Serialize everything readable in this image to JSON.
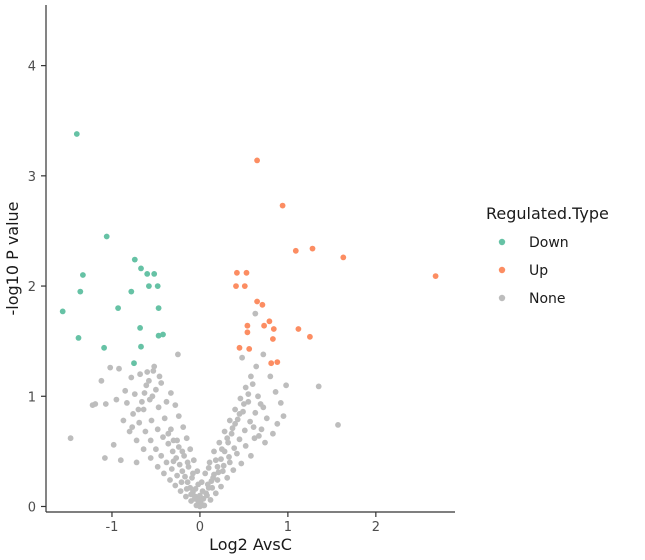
{
  "chart_data": {
    "type": "scatter",
    "xlabel": "Log2 AvsC",
    "ylabel": "-log10 P value",
    "xlim": [
      -1.75,
      2.9
    ],
    "ylim": [
      -0.05,
      4.55
    ],
    "x_ticks": [
      -1,
      0,
      1,
      2
    ],
    "y_ticks": [
      0,
      1,
      2,
      3,
      4
    ],
    "x_tick_labels": [
      "-1",
      "0",
      "1",
      "2"
    ],
    "y_tick_labels": [
      "0",
      "1",
      "2",
      "3",
      "4"
    ],
    "grid": false,
    "legend": {
      "title": "Regulated.Type",
      "position": "right",
      "entries": [
        {
          "label": "Down",
          "color": "#66c2a5"
        },
        {
          "label": "Up",
          "color": "#fc8d62"
        },
        {
          "label": "None",
          "color": "#bdbdbd"
        }
      ]
    },
    "series": [
      {
        "name": "Down",
        "color": "#66c2a5",
        "points": [
          [
            -1.4,
            3.38
          ],
          [
            -1.06,
            2.45
          ],
          [
            -0.74,
            2.24
          ],
          [
            -0.6,
            2.11
          ],
          [
            -0.52,
            2.11
          ],
          [
            -0.48,
            2.0
          ],
          [
            -0.58,
            2.0
          ],
          [
            -0.78,
            1.95
          ],
          [
            -1.36,
            1.95
          ],
          [
            -1.33,
            2.1
          ],
          [
            -1.56,
            1.77
          ],
          [
            -0.93,
            1.8
          ],
          [
            -0.47,
            1.8
          ],
          [
            -0.68,
            1.62
          ],
          [
            -0.42,
            1.56
          ],
          [
            -0.47,
            1.55
          ],
          [
            -1.38,
            1.53
          ],
          [
            -1.09,
            1.44
          ],
          [
            -0.67,
            1.45
          ],
          [
            -0.75,
            1.3
          ],
          [
            -0.67,
            2.16
          ]
        ]
      },
      {
        "name": "Up",
        "color": "#fc8d62",
        "points": [
          [
            0.65,
            3.14
          ],
          [
            0.94,
            2.73
          ],
          [
            1.63,
            2.26
          ],
          [
            1.28,
            2.34
          ],
          [
            1.09,
            2.32
          ],
          [
            0.42,
            2.12
          ],
          [
            0.53,
            2.12
          ],
          [
            0.41,
            2.0
          ],
          [
            0.51,
            2.0
          ],
          [
            2.68,
            2.09
          ],
          [
            0.65,
            1.86
          ],
          [
            0.71,
            1.83
          ],
          [
            0.73,
            1.64
          ],
          [
            0.79,
            1.68
          ],
          [
            0.84,
            1.61
          ],
          [
            0.54,
            1.64
          ],
          [
            0.54,
            1.58
          ],
          [
            1.12,
            1.61
          ],
          [
            1.25,
            1.54
          ],
          [
            0.83,
            1.52
          ],
          [
            0.45,
            1.44
          ],
          [
            0.56,
            1.43
          ],
          [
            0.88,
            1.31
          ],
          [
            0.81,
            1.3
          ]
        ]
      },
      {
        "name": "None",
        "color": "#bdbdbd",
        "points": [
          [
            -1.47,
            0.62
          ],
          [
            -1.08,
            0.44
          ],
          [
            -0.9,
            0.42
          ],
          [
            -0.72,
            0.4
          ],
          [
            -0.3,
            0.41
          ],
          [
            1.35,
            1.09
          ],
          [
            1.57,
            0.74
          ],
          [
            0.63,
            1.75
          ],
          [
            -0.25,
            1.38
          ],
          [
            -1.19,
            0.93
          ],
          [
            -1.07,
            0.93
          ],
          [
            -0.95,
            0.97
          ],
          [
            -0.85,
            1.05
          ],
          [
            -0.78,
            1.17
          ],
          [
            -0.92,
            1.25
          ],
          [
            -0.6,
            1.22
          ],
          [
            -0.52,
            1.27
          ],
          [
            -0.44,
            1.12
          ],
          [
            -0.38,
            0.95
          ],
          [
            -0.64,
            0.88
          ],
          [
            -0.55,
            0.78
          ],
          [
            -0.48,
            0.7
          ],
          [
            -0.42,
            0.63
          ],
          [
            -0.36,
            0.57
          ],
          [
            -0.31,
            0.5
          ],
          [
            -0.27,
            0.44
          ],
          [
            -0.23,
            0.38
          ],
          [
            -0.2,
            0.32
          ],
          [
            -0.17,
            0.27
          ],
          [
            -0.14,
            0.22
          ],
          [
            -0.11,
            0.17
          ],
          [
            -0.08,
            0.13
          ],
          [
            -0.05,
            0.09
          ],
          [
            -0.02,
            0.05
          ],
          [
            0.01,
            0.03
          ],
          [
            0.04,
            0.07
          ],
          [
            0.07,
            0.12
          ],
          [
            0.1,
            0.17
          ],
          [
            0.13,
            0.23
          ],
          [
            0.16,
            0.29
          ],
          [
            0.2,
            0.36
          ],
          [
            0.24,
            0.43
          ],
          [
            0.28,
            0.5
          ],
          [
            0.32,
            0.58
          ],
          [
            0.36,
            0.66
          ],
          [
            0.4,
            0.75
          ],
          [
            0.45,
            0.84
          ],
          [
            0.5,
            0.93
          ],
          [
            0.55,
            1.02
          ],
          [
            0.6,
            1.11
          ],
          [
            0.66,
            1.0
          ],
          [
            0.72,
            0.9
          ],
          [
            0.76,
            0.8
          ],
          [
            0.7,
            0.7
          ],
          [
            0.62,
            0.62
          ],
          [
            0.52,
            0.55
          ],
          [
            0.42,
            0.48
          ],
          [
            0.34,
            0.4
          ],
          [
            0.26,
            0.32
          ],
          [
            0.2,
            0.24
          ],
          [
            0.14,
            0.17
          ],
          [
            0.08,
            0.1
          ],
          [
            -0.02,
            0.2
          ],
          [
            -0.08,
            0.3
          ],
          [
            -0.14,
            0.4
          ],
          [
            -0.2,
            0.5
          ],
          [
            -0.26,
            0.6
          ],
          [
            -0.33,
            0.7
          ],
          [
            -0.4,
            0.8
          ],
          [
            -0.47,
            0.9
          ],
          [
            -0.54,
            1.0
          ],
          [
            -0.61,
            1.1
          ],
          [
            -0.68,
            1.2
          ],
          [
            -0.33,
            1.03
          ],
          [
            -0.28,
            0.92
          ],
          [
            -0.24,
            0.82
          ],
          [
            -0.19,
            0.72
          ],
          [
            -0.15,
            0.62
          ],
          [
            -0.11,
            0.52
          ],
          [
            -0.07,
            0.42
          ],
          [
            -0.03,
            0.32
          ],
          [
            0.02,
            0.22
          ],
          [
            0.06,
            0.3
          ],
          [
            0.11,
            0.4
          ],
          [
            0.16,
            0.5
          ],
          [
            0.22,
            0.58
          ],
          [
            0.28,
            0.68
          ],
          [
            0.34,
            0.78
          ],
          [
            0.4,
            0.88
          ],
          [
            0.46,
            0.98
          ],
          [
            0.52,
            1.08
          ],
          [
            0.58,
            1.18
          ],
          [
            0.64,
            1.27
          ],
          [
            0.48,
            1.35
          ],
          [
            0.72,
            1.38
          ],
          [
            0.8,
            1.18
          ],
          [
            0.86,
            1.04
          ],
          [
            0.92,
            0.94
          ],
          [
            0.95,
            0.82
          ],
          [
            0.88,
            0.75
          ],
          [
            0.98,
            1.1
          ],
          [
            0.83,
            0.66
          ],
          [
            0.74,
            0.58
          ],
          [
            0.58,
            0.46
          ],
          [
            0.47,
            0.39
          ],
          [
            0.38,
            0.33
          ],
          [
            0.31,
            0.26
          ],
          [
            0.24,
            0.18
          ],
          [
            0.18,
            0.12
          ],
          [
            0.12,
            0.06
          ],
          [
            0.05,
            0.01
          ],
          [
            -0.04,
            0.01
          ],
          [
            -0.1,
            0.05
          ],
          [
            -0.16,
            0.09
          ],
          [
            -0.22,
            0.14
          ],
          [
            -0.28,
            0.19
          ],
          [
            -0.34,
            0.24
          ],
          [
            -0.41,
            0.3
          ],
          [
            -0.48,
            0.36
          ],
          [
            -0.56,
            0.44
          ],
          [
            -0.64,
            0.52
          ],
          [
            -0.72,
            0.6
          ],
          [
            -0.8,
            0.68
          ],
          [
            -0.87,
            0.78
          ],
          [
            -0.98,
            0.56
          ],
          [
            -1.02,
            1.26
          ],
          [
            -1.12,
            1.14
          ],
          [
            -1.22,
            0.92
          ],
          [
            -0.83,
            0.94
          ],
          [
            -0.76,
            0.84
          ],
          [
            -0.69,
            0.76
          ],
          [
            -0.62,
            0.68
          ],
          [
            -0.56,
            0.6
          ],
          [
            -0.5,
            0.52
          ],
          [
            -0.44,
            0.46
          ],
          [
            -0.38,
            0.4
          ],
          [
            -0.32,
            0.34
          ],
          [
            -0.26,
            0.28
          ],
          [
            -0.21,
            0.22
          ],
          [
            -0.15,
            0.16
          ],
          [
            -0.1,
            0.11
          ],
          [
            -0.06,
            0.07
          ],
          [
            0.0,
            0.1
          ],
          [
            0.03,
            0.14
          ],
          [
            0.09,
            0.2
          ],
          [
            0.15,
            0.26
          ],
          [
            0.21,
            0.31
          ],
          [
            0.27,
            0.37
          ],
          [
            0.33,
            0.45
          ],
          [
            0.39,
            0.53
          ],
          [
            0.45,
            0.61
          ],
          [
            0.51,
            0.69
          ],
          [
            0.57,
            0.77
          ],
          [
            0.63,
            0.85
          ],
          [
            0.69,
            0.93
          ],
          [
            -0.46,
            1.18
          ],
          [
            -0.5,
            1.06
          ],
          [
            -0.57,
            0.97
          ],
          [
            -0.66,
            0.95
          ],
          [
            -0.74,
            1.02
          ],
          [
            -0.36,
            0.66
          ],
          [
            -0.3,
            0.6
          ],
          [
            -0.24,
            0.54
          ],
          [
            -0.18,
            0.46
          ],
          [
            -0.13,
            0.36
          ],
          [
            -0.09,
            0.26
          ],
          [
            -0.05,
            0.16
          ],
          [
            0.0,
            0.0
          ],
          [
            0.04,
            0.01
          ],
          [
            -0.01,
            0.07
          ],
          [
            0.1,
            0.35
          ],
          [
            0.18,
            0.42
          ],
          [
            0.25,
            0.52
          ],
          [
            0.31,
            0.62
          ],
          [
            0.37,
            0.71
          ],
          [
            0.43,
            0.79
          ],
          [
            0.49,
            0.86
          ],
          [
            0.55,
            0.95
          ],
          [
            0.61,
            0.72
          ],
          [
            0.67,
            0.64
          ],
          [
            -0.58,
            1.14
          ],
          [
            -0.53,
            1.23
          ],
          [
            -0.63,
            1.03
          ],
          [
            -0.7,
            0.88
          ],
          [
            -0.77,
            0.72
          ]
        ]
      }
    ]
  }
}
